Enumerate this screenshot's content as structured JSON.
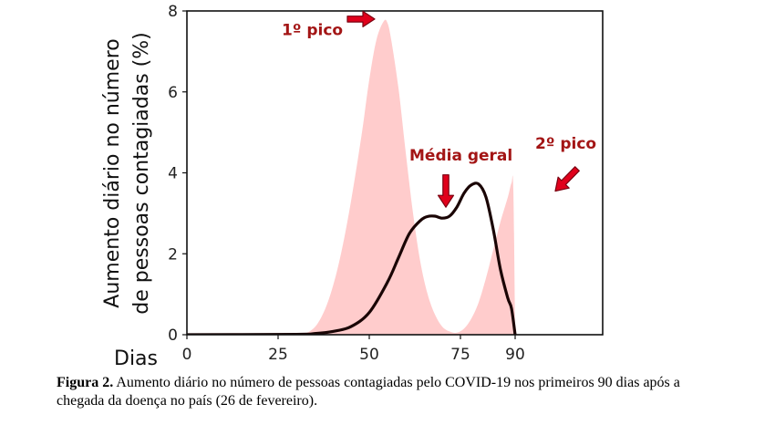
{
  "chart_data": {
    "type": "area",
    "xlabel": "Dias",
    "ylabel": "Aumento diário no número de pessoas contagiadas (%)",
    "ylabel_lines": [
      "Aumento diário no número",
      "de pessoas contagiadas (%)"
    ],
    "xlim": [
      0,
      114
    ],
    "ylim": [
      0,
      8
    ],
    "x_ticks": [
      0,
      25,
      50,
      75,
      90
    ],
    "y_ticks": [
      0,
      2,
      4,
      6,
      8
    ],
    "grid": false,
    "colors": {
      "fill": "#ffcccc",
      "line": "#1a0505",
      "annotation": "#a31515",
      "arrow": "#e0001b"
    },
    "series": [
      {
        "kind": "filled-area",
        "x": [
          0,
          25,
          30,
          33,
          36,
          39,
          42,
          45,
          48,
          50,
          52,
          54,
          55,
          56,
          58,
          60,
          62,
          64,
          66,
          68,
          70,
          72,
          74,
          76,
          78,
          80,
          82,
          84,
          86,
          88,
          89,
          89.5,
          90
        ],
        "y": [
          0,
          0,
          0,
          0.05,
          0.3,
          0.9,
          1.9,
          3.3,
          5.0,
          6.3,
          7.3,
          7.75,
          7.7,
          7.3,
          6.1,
          4.5,
          3.0,
          1.8,
          1.0,
          0.5,
          0.2,
          0.08,
          0.05,
          0.15,
          0.4,
          0.8,
          1.4,
          2.1,
          2.8,
          3.4,
          3.75,
          3.6,
          0
        ]
      },
      {
        "kind": "line",
        "x": [
          0,
          30,
          35,
          40,
          45,
          50,
          55,
          58,
          61,
          64,
          66,
          68,
          70,
          72,
          74,
          76,
          78,
          80,
          82,
          84,
          86,
          88,
          89,
          90
        ],
        "y": [
          0,
          0.01,
          0.03,
          0.08,
          0.2,
          0.55,
          1.3,
          1.9,
          2.5,
          2.82,
          2.92,
          2.93,
          2.88,
          2.93,
          3.15,
          3.5,
          3.7,
          3.72,
          3.4,
          2.6,
          1.6,
          0.9,
          0.65,
          0
        ]
      }
    ],
    "annotations": [
      {
        "text": "1º pico",
        "x": 26,
        "y": 7.4,
        "arrow_from": [
          44,
          7.8
        ],
        "arrow_to": [
          51.5,
          7.8
        ]
      },
      {
        "text": "Média geral",
        "x": 61,
        "y": 4.3,
        "arrow_from": [
          71,
          3.95
        ],
        "arrow_to": [
          71,
          3.15
        ]
      },
      {
        "text": "2º pico",
        "x": 95.5,
        "y": 4.6,
        "arrow_from": [
          107,
          4.1
        ],
        "arrow_to": [
          101,
          3.55
        ]
      }
    ]
  },
  "caption": {
    "label": "Figura 2.",
    "text": " Aumento diário no número de pessoas contagiadas pelo COVID-19 nos primeiros 90 dias após a chegada da doença no país (26 de fevereiro)."
  }
}
